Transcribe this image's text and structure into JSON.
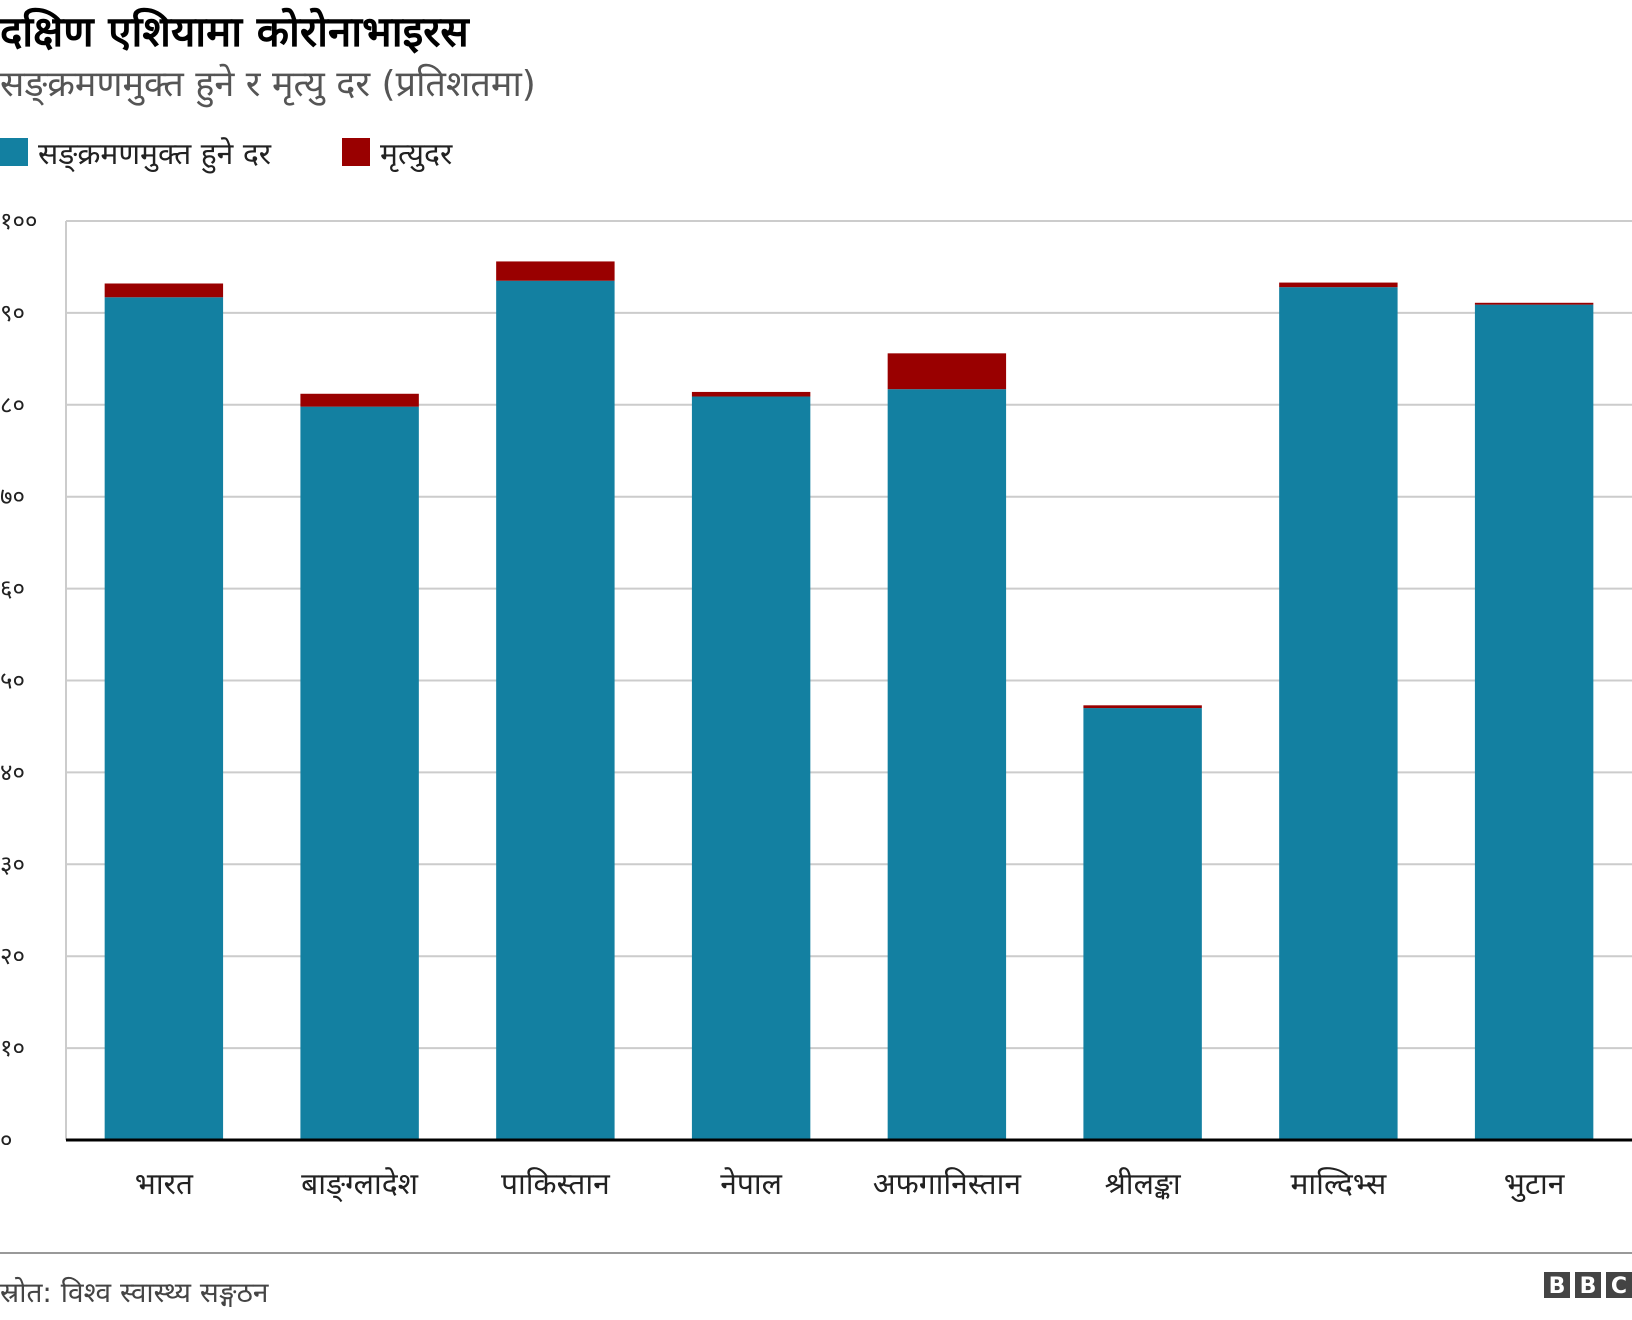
{
  "colors": {
    "recovered": "#1380a1",
    "death": "#990000",
    "grid": "#cccccc",
    "axis": "#000000"
  },
  "chart_data": {
    "type": "bar",
    "stacked": true,
    "title": "दक्षिण एशियामा कोरोनाभाइरस",
    "subtitle": "सङ्क्रमणमुक्त हुने र मृत्यु दर (प्रतिशतमा)",
    "xlabel": "",
    "ylabel": "",
    "ylim": [
      0,
      100
    ],
    "grid": true,
    "legend_placement": "top-left",
    "yticks": [
      0,
      10,
      20,
      30,
      40,
      50,
      60,
      70,
      80,
      90,
      100
    ],
    "ytick_labels": [
      "०",
      "१०",
      "२०",
      "३०",
      "४०",
      "५०",
      "६०",
      "७०",
      "८०",
      "९०",
      "१००"
    ],
    "categories": [
      "भारत",
      "बाङ्ग्लादेश",
      "पाकिस्तान",
      "नेपाल",
      "अफगानिस्तान",
      "श्रीलङ्का",
      "माल्दिभ्स",
      "भुटान"
    ],
    "series": [
      {
        "name": "सङ्क्रमणमुक्त हुने दर",
        "color": "#1380a1",
        "values": [
          91.7,
          79.8,
          93.5,
          80.9,
          81.7,
          47.0,
          92.8,
          90.9
        ]
      },
      {
        "name": "मृत्युदर",
        "color": "#990000",
        "values": [
          1.5,
          1.4,
          2.1,
          0.5,
          3.9,
          0.3,
          0.5,
          0.2
        ]
      }
    ]
  },
  "footer": {
    "source": "स्रोत: विश्व स्वास्थ्य सङ्गठन",
    "logo": [
      "B",
      "B",
      "C"
    ]
  }
}
